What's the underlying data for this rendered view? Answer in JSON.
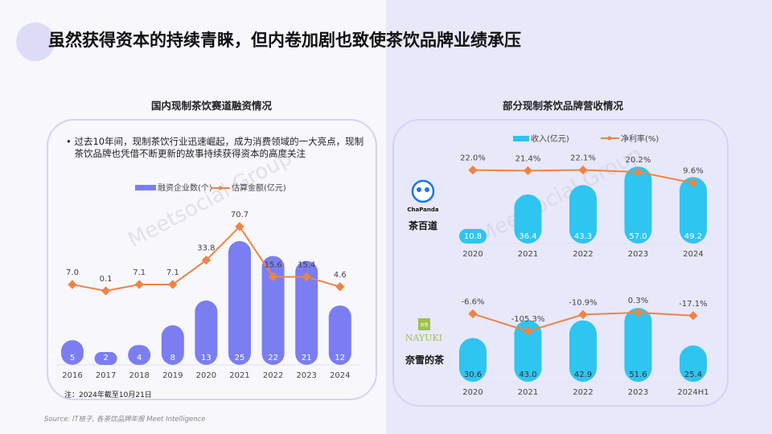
{
  "title": "虽然获得资本的持续青睐，但内卷加剧也致使茶饮品牌业绩承压",
  "watermark": "Meetsocial Group 飞书深诺",
  "colors": {
    "purple_bar": "#7b7ef0",
    "orange_line": "#ee8444",
    "cyan_bar": "#2ec5f0",
    "card_border": "#d3d3f3"
  },
  "source": "Source: IT桔子, 各茶饮品牌年报 Meet Intelligence",
  "chart_data": [
    {
      "type": "bar+line",
      "title": "国内现制茶饮赛道融资情况",
      "bullet": "过去10年间，现制茶饮行业迅速崛起，成为消费领域的一大亮点，现制茶饮品牌也凭借不断更新的故事持续获得资本的高度关注",
      "note": "注：2024年截至10月21日",
      "categories": [
        "2016",
        "2017",
        "2018",
        "2019",
        "2020",
        "2021",
        "2022",
        "2023",
        "2024"
      ],
      "series": [
        {
          "name": "融资企业数(个)",
          "type": "bar",
          "values": [
            5,
            2,
            4,
            8,
            13,
            25,
            22,
            21,
            12
          ],
          "labels": [
            "5",
            "2",
            "4",
            "8",
            "13",
            "25",
            "22",
            "21",
            "12"
          ]
        },
        {
          "name": "估算金额(亿元)",
          "type": "line",
          "values": [
            7.0,
            0.1,
            7.1,
            7.1,
            33.8,
            70.7,
            15.6,
            15.4,
            4.6
          ],
          "labels": [
            "7.0",
            "0.1",
            "7.1",
            "7.1",
            "33.8",
            "70.7",
            "15.6",
            "15.4",
            "4.6"
          ]
        }
      ]
    },
    {
      "type": "bar+line",
      "title": "部分现制茶饮品牌营收情况",
      "brand": "茶百道",
      "logo_text": "ChaPanda",
      "categories": [
        "2020",
        "2021",
        "2022",
        "2023",
        "2024"
      ],
      "series": [
        {
          "name": "收入(亿元)",
          "type": "bar",
          "values": [
            10.8,
            36.4,
            43.3,
            57.0,
            49.2
          ],
          "labels": [
            "10.8",
            "36.4",
            "43.3",
            "57.0",
            "49.2"
          ]
        },
        {
          "name": "净利率(%)",
          "type": "line",
          "values": [
            22.0,
            21.4,
            22.1,
            20.2,
            9.6
          ],
          "labels": [
            "22.0%",
            "21.4%",
            "22.1%",
            "20.2%",
            "9.6%"
          ]
        }
      ]
    },
    {
      "type": "bar+line",
      "brand": "奈雪的茶",
      "logo_text": "NAYUKI",
      "logo_mark": "奈雪の茶",
      "categories": [
        "2020",
        "2021",
        "2022",
        "2023",
        "2024H1"
      ],
      "series": [
        {
          "name": "收入(亿元)",
          "type": "bar",
          "values": [
            30.6,
            43.0,
            42.9,
            51.6,
            25.4
          ],
          "labels": [
            "30.6",
            "43.0",
            "42.9",
            "51.6",
            "25.4"
          ]
        },
        {
          "name": "净利率(%)",
          "type": "line",
          "values": [
            -6.6,
            -105.3,
            -10.9,
            0.3,
            -17.1
          ],
          "labels": [
            "-6.6%",
            "-105.3%",
            "-10.9%",
            "0.3%",
            "-17.1%"
          ]
        }
      ]
    }
  ]
}
